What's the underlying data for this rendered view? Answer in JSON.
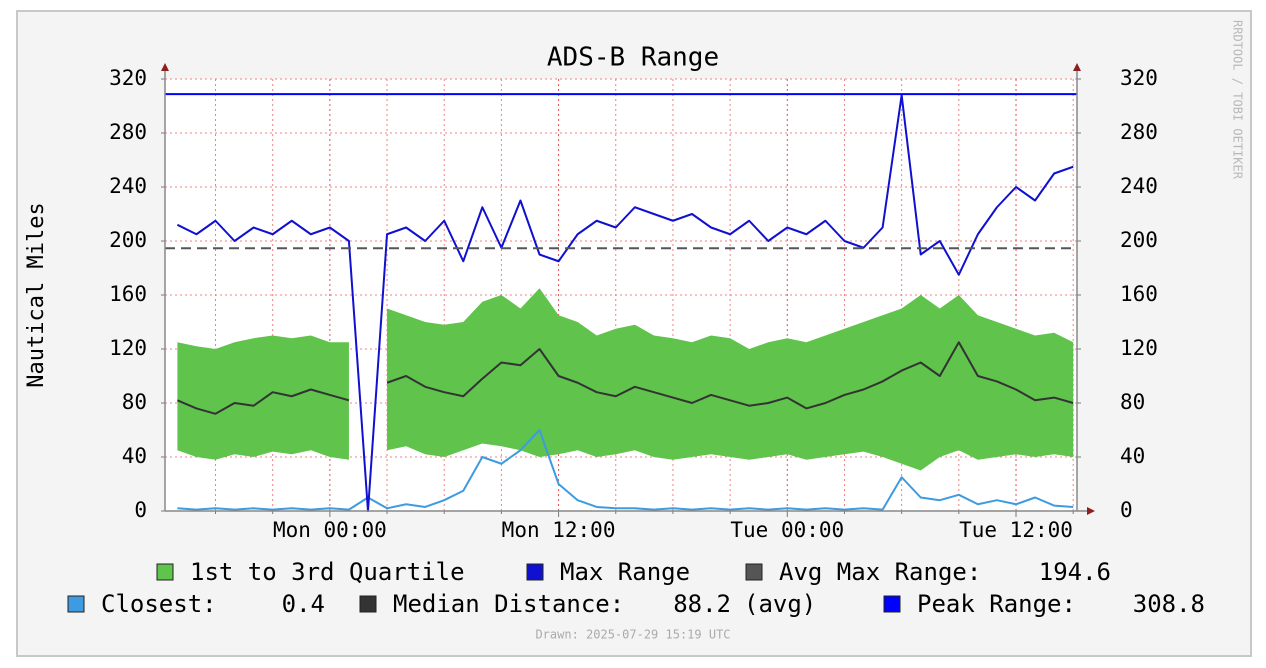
{
  "chart_data": {
    "type": "line",
    "title": "ADS-B Range",
    "y_label": "Nautical Miles",
    "watermark": "RRDTOOL / TOBI OETIKER",
    "footer": "Drawn: 2025-07-29 15:19 UTC",
    "x": [
      -8,
      -7,
      -6,
      -5,
      -4,
      -3,
      -2,
      -1,
      0,
      1,
      2,
      3,
      4,
      5,
      6,
      7,
      8,
      9,
      10,
      11,
      12,
      13,
      14,
      15,
      16,
      17,
      18,
      19,
      20,
      21,
      22,
      23,
      24,
      25,
      26,
      27,
      28,
      29,
      30,
      31,
      32,
      33,
      34,
      35,
      36,
      37,
      38,
      39
    ],
    "xlim": [
      -8.65,
      39.2
    ],
    "xticks": [
      {
        "value": 0,
        "label": "Mon 00:00"
      },
      {
        "value": 12,
        "label": "Mon 12:00"
      },
      {
        "value": 24,
        "label": "Tue 00:00"
      },
      {
        "value": 36,
        "label": "Tue 12:00"
      }
    ],
    "minor_xticks": [
      -6,
      -3,
      3,
      6,
      9,
      15,
      18,
      21,
      27,
      30,
      33,
      39
    ],
    "ylim": [
      0,
      320
    ],
    "yticks": [
      0,
      40,
      80,
      120,
      160,
      200,
      240,
      280,
      320
    ],
    "grid": true,
    "series": [
      {
        "name": "1st to 3rd Quartile",
        "kind": "band",
        "color": "#5fc34c",
        "values": [
          45,
          40,
          38,
          42,
          40,
          44,
          42,
          45,
          40,
          38,
          null,
          45,
          48,
          42,
          40,
          45,
          50,
          48,
          45,
          40,
          42,
          45,
          40,
          42,
          45,
          40,
          38,
          40,
          42,
          40,
          38,
          40,
          42,
          38,
          40,
          42,
          44,
          40,
          35,
          30,
          40,
          45,
          38,
          40,
          42,
          40,
          42,
          40
        ],
        "upper": [
          125,
          122,
          120,
          125,
          128,
          130,
          128,
          130,
          125,
          125,
          null,
          150,
          145,
          140,
          138,
          140,
          155,
          160,
          150,
          165,
          145,
          140,
          130,
          135,
          138,
          130,
          128,
          125,
          130,
          128,
          120,
          125,
          128,
          125,
          130,
          135,
          140,
          145,
          150,
          160,
          150,
          160,
          145,
          140,
          135,
          130,
          132,
          125
        ]
      },
      {
        "name": "Max Range",
        "kind": "line",
        "color": "#1010d0",
        "values": [
          212,
          205,
          215,
          200,
          210,
          205,
          215,
          205,
          210,
          200,
          0,
          205,
          210,
          200,
          215,
          185,
          225,
          195,
          230,
          190,
          185,
          205,
          215,
          210,
          225,
          220,
          215,
          220,
          210,
          205,
          215,
          200,
          210,
          205,
          215,
          200,
          195,
          210,
          308,
          190,
          200,
          175,
          205,
          225,
          240,
          230,
          250,
          255
        ]
      },
      {
        "name": "Avg Max Range:",
        "kind": "hline",
        "color": "#555555",
        "dashed": true,
        "stat": 194.6
      },
      {
        "name": "Closest:",
        "kind": "line",
        "color": "#3d9be0",
        "stat": 0.4,
        "values": [
          2,
          1,
          2,
          1,
          2,
          1,
          2,
          1,
          2,
          1,
          10,
          2,
          5,
          3,
          8,
          15,
          40,
          35,
          45,
          60,
          20,
          8,
          3,
          2,
          2,
          1,
          2,
          1,
          2,
          1,
          2,
          1,
          2,
          1,
          2,
          1,
          2,
          1,
          25,
          10,
          8,
          12,
          5,
          8,
          5,
          10,
          4,
          3
        ]
      },
      {
        "name": "Median Distance:",
        "kind": "line",
        "color": "#333333",
        "stat": 88.2,
        "stat_note": "(avg)",
        "values": [
          82,
          76,
          72,
          80,
          78,
          88,
          85,
          90,
          86,
          82,
          null,
          95,
          100,
          92,
          88,
          85,
          98,
          110,
          108,
          120,
          100,
          95,
          88,
          85,
          92,
          88,
          84,
          80,
          86,
          82,
          78,
          80,
          84,
          76,
          80,
          86,
          90,
          96,
          104,
          110,
          100,
          125,
          100,
          96,
          90,
          82,
          84,
          80
        ]
      },
      {
        "name": "Peak Range:",
        "kind": "hline",
        "color": "#0000ff",
        "stat": 308.8
      }
    ]
  }
}
